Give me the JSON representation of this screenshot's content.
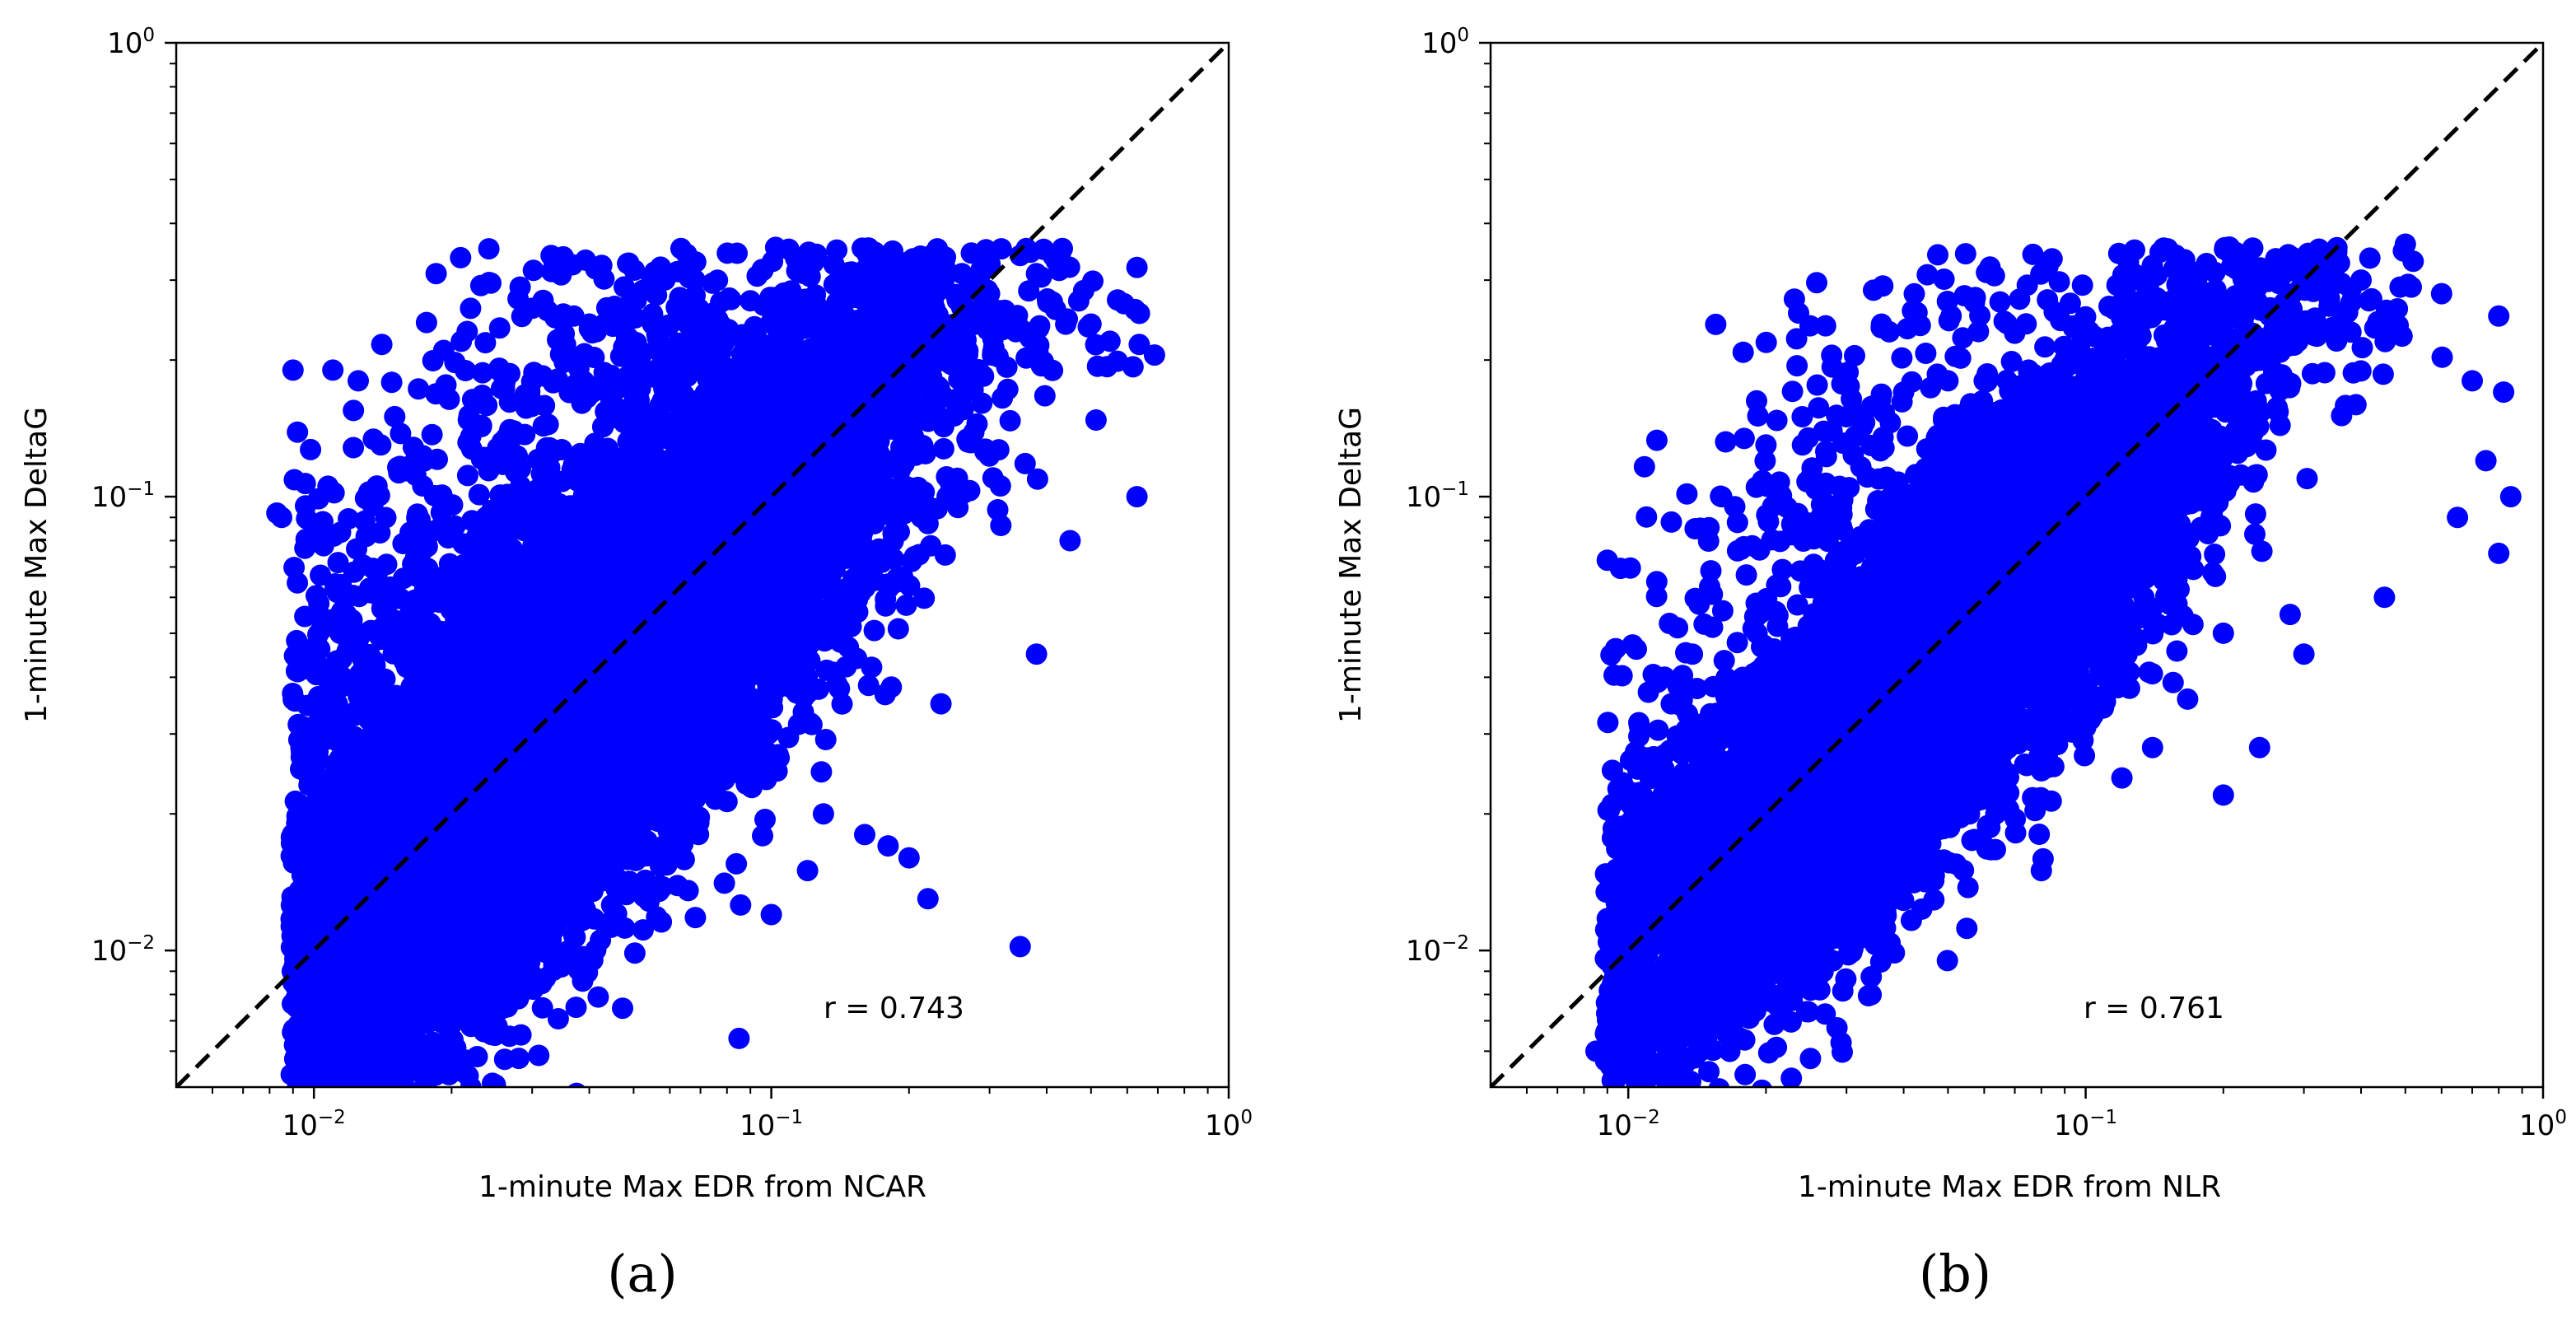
{
  "chart_data": [
    {
      "type": "scatter",
      "panel_label": "(a)",
      "xlabel": "1-minute Max EDR from NCAR",
      "ylabel": "1-minute Max DeltaG",
      "xscale": "log",
      "yscale": "log",
      "xlim": [
        0.005,
        1.0
      ],
      "ylim": [
        0.005,
        1.0
      ],
      "x_ticks": [
        {
          "base": "10",
          "exp": "−2"
        },
        {
          "base": "10",
          "exp": "−1"
        },
        {
          "base": "10",
          "exp": "0"
        }
      ],
      "y_ticks": [
        {
          "base": "10",
          "exp": "−2"
        },
        {
          "base": "10",
          "exp": "−1"
        },
        {
          "base": "10",
          "exp": "0"
        }
      ],
      "annotation": "r = 0.743",
      "reference_line": "1:1 dashed",
      "marker_color": "#0000ff",
      "point_count_approx": 11000,
      "outliers_x": [
        0.0085,
        0.0083,
        0.009,
        0.011,
        0.0125,
        0.014,
        0.022,
        0.021,
        0.033,
        0.03,
        0.037,
        0.04,
        0.055,
        0.07,
        0.09,
        0.13,
        0.18,
        0.16,
        0.22,
        0.25,
        0.3,
        0.35,
        0.38,
        0.42,
        0.47,
        0.5,
        0.55,
        0.63,
        0.63,
        0.45,
        0.38,
        0.12,
        0.085,
        0.18,
        0.2,
        0.22,
        0.35,
        0.1,
        0.16,
        0.13
      ],
      "outliers_y": [
        0.09,
        0.092,
        0.19,
        0.19,
        0.18,
        0.13,
        0.26,
        0.22,
        0.34,
        0.26,
        0.25,
        0.24,
        0.24,
        0.22,
        0.23,
        0.25,
        0.24,
        0.22,
        0.24,
        0.2,
        0.28,
        0.34,
        0.31,
        0.33,
        0.27,
        0.24,
        0.22,
        0.32,
        0.1,
        0.08,
        0.045,
        0.015,
        0.0064,
        0.017,
        0.016,
        0.013,
        0.0102,
        0.012,
        0.018,
        0.02
      ]
    },
    {
      "type": "scatter",
      "panel_label": "(b)",
      "xlabel": "1-minute Max EDR from NLR",
      "ylabel": "1-minute Max DeltaG",
      "xscale": "log",
      "yscale": "log",
      "xlim": [
        0.005,
        1.0
      ],
      "ylim": [
        0.005,
        1.0
      ],
      "x_ticks": [
        {
          "base": "10",
          "exp": "−2"
        },
        {
          "base": "10",
          "exp": "−1"
        },
        {
          "base": "10",
          "exp": "0"
        }
      ],
      "y_ticks": [
        {
          "base": "10",
          "exp": "−2"
        },
        {
          "base": "10",
          "exp": "−1"
        },
        {
          "base": "10",
          "exp": "0"
        }
      ],
      "annotation": "r = 0.761",
      "reference_line": "1:1 dashed",
      "marker_color": "#0000ff",
      "point_count_approx": 9000,
      "outliers_x": [
        0.0085,
        0.009,
        0.0105,
        0.012,
        0.014,
        0.016,
        0.02,
        0.024,
        0.03,
        0.035,
        0.04,
        0.05,
        0.06,
        0.075,
        0.09,
        0.11,
        0.2,
        0.24,
        0.3,
        0.4,
        0.5,
        0.52,
        0.6,
        0.7,
        0.8,
        0.82,
        0.85,
        0.75,
        0.65,
        0.8,
        0.45,
        0.3,
        0.2,
        0.12,
        0.14,
        0.1,
        0.2,
        0.08,
        0.24,
        0.28
      ],
      "outliers_y": [
        0.006,
        0.0095,
        0.02,
        0.04,
        0.085,
        0.1,
        0.13,
        0.15,
        0.15,
        0.16,
        0.17,
        0.18,
        0.18,
        0.19,
        0.2,
        0.21,
        0.24,
        0.22,
        0.32,
        0.3,
        0.36,
        0.33,
        0.28,
        0.18,
        0.25,
        0.17,
        0.1,
        0.12,
        0.09,
        0.075,
        0.06,
        0.045,
        0.022,
        0.024,
        0.028,
        0.031,
        0.05,
        0.015,
        0.028,
        0.055
      ]
    }
  ]
}
